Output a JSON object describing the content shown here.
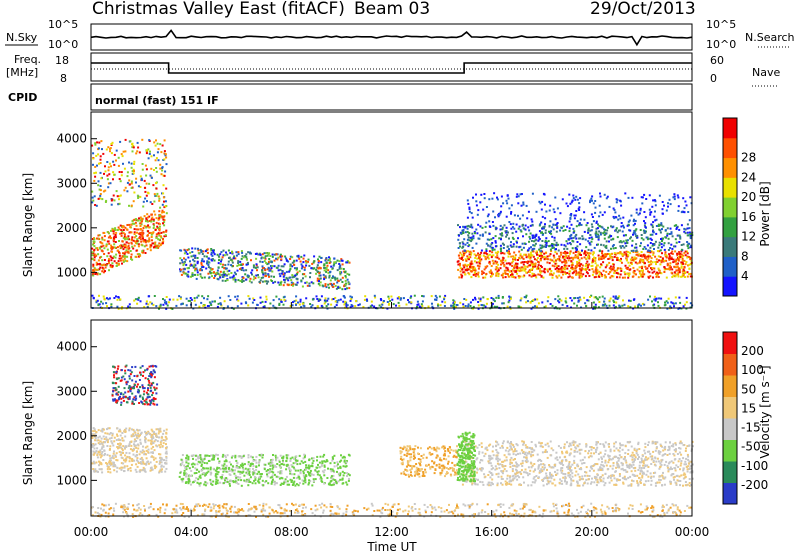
{
  "header": {
    "title": "Christmas Valley East (fitACF)",
    "beam": "Beam 03",
    "date": "29/Oct/2013"
  },
  "strips": {
    "nsky": {
      "left_label": "N.Sky",
      "right_label": "N.Search",
      "left_ticks": [
        "10^5",
        "10^0"
      ],
      "right_ticks": [
        "10^5",
        "10^0"
      ]
    },
    "freq": {
      "left_label_1": "Freq.",
      "left_label_2": "[MHz]",
      "right_label": "Nave",
      "left_ticks": [
        "18",
        "8"
      ],
      "right_ticks": [
        "60",
        "0"
      ]
    },
    "cpid": {
      "label": "CPID",
      "value": "normal (fast) 151 IF"
    }
  },
  "chart_data": [
    {
      "type": "heatmap",
      "panel": "power",
      "ylabel": "Slant Range [km]",
      "y_ticks": [
        "1000",
        "2000",
        "3000",
        "4000"
      ],
      "ylim": [
        200,
        4600
      ],
      "x_ticks": [
        "00:00",
        "04:00",
        "08:00",
        "12:00",
        "16:00",
        "20:00",
        "00:00"
      ],
      "xlim": [
        0,
        24
      ],
      "colorbar": {
        "label": "Power [dB]",
        "ticks": [
          "4",
          "8",
          "12",
          "16",
          "20",
          "24",
          "28"
        ],
        "colors": [
          "#1414ff",
          "#2060c8",
          "#3a7a7a",
          "#32a040",
          "#80d030",
          "#e8e000",
          "#ff9000",
          "#ff5000",
          "#f00000"
        ]
      }
    },
    {
      "type": "heatmap",
      "panel": "velocity",
      "ylabel": "Slant Range [km]",
      "y_ticks": [
        "1000",
        "2000",
        "3000",
        "4000"
      ],
      "ylim": [
        200,
        4600
      ],
      "x_ticks": [
        "00:00",
        "04:00",
        "08:00",
        "12:00",
        "16:00",
        "20:00",
        "00:00"
      ],
      "xlim": [
        0,
        24
      ],
      "xlabel": "Time UT",
      "colorbar": {
        "label": "Velocity [m s⁻¹]",
        "ticks": [
          "200",
          "100",
          "50",
          "15",
          "-15",
          "-50",
          "-100",
          "-200"
        ],
        "colors": [
          "#2a3cc8",
          "#2a8a5a",
          "#6cd040",
          "#c8c8c8",
          "#f0c878",
          "#f0a028",
          "#f06018",
          "#f01010"
        ]
      }
    }
  ]
}
